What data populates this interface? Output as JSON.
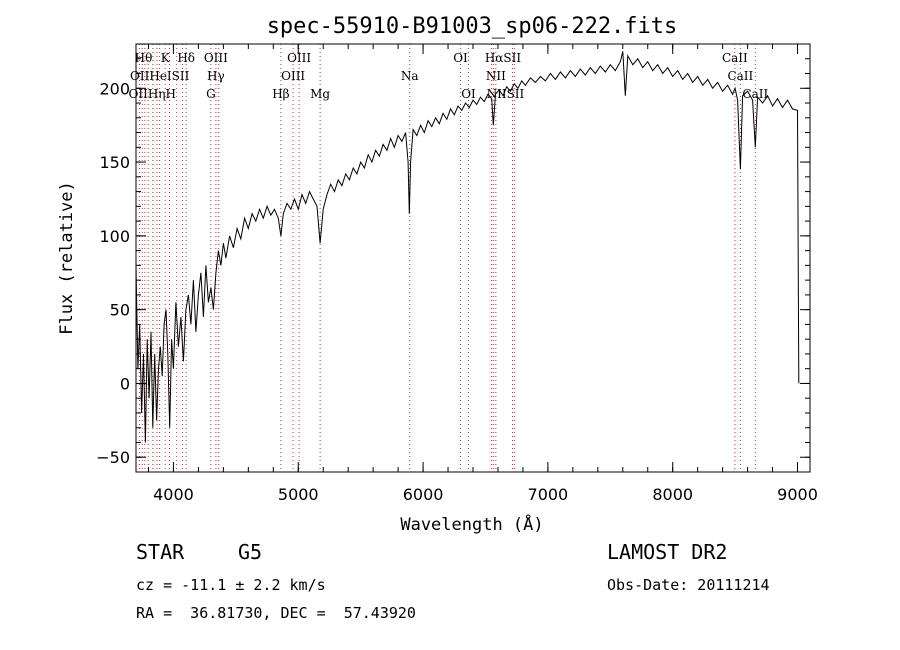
{
  "footer": {
    "obj_class": "STAR",
    "subclass": "G5",
    "survey": "LAMOST DR2",
    "cz": "cz = -11.1 ± 2.2 km/s",
    "obs_date": "Obs-Date: 20111214",
    "radec": "RA =  36.81730, DEC =  57.43920"
  },
  "chart_data": {
    "type": "line",
    "title": "spec-55910-B91003_sp06-222.fits",
    "xlabel": "Wavelength (Å)",
    "ylabel": "Flux (relative)",
    "xlim": [
      3700,
      9100
    ],
    "ylim": [
      -60,
      230
    ],
    "xticks": [
      4000,
      5000,
      6000,
      7000,
      8000,
      9000
    ],
    "yticks": [
      -50,
      0,
      50,
      100,
      150,
      200
    ],
    "line_color": "#000000",
    "marker_color": "#cc3333",
    "series": [
      {
        "points": [
          [
            3700,
            80
          ],
          [
            3715,
            10
          ],
          [
            3730,
            40
          ],
          [
            3745,
            -20
          ],
          [
            3760,
            20
          ],
          [
            3775,
            -40
          ],
          [
            3790,
            30
          ],
          [
            3805,
            -10
          ],
          [
            3820,
            35
          ],
          [
            3835,
            -30
          ],
          [
            3850,
            20
          ],
          [
            3865,
            -25
          ],
          [
            3880,
            10
          ],
          [
            3895,
            25
          ],
          [
            3910,
            5
          ],
          [
            3925,
            40
          ],
          [
            3940,
            50
          ],
          [
            3955,
            20
          ],
          [
            3970,
            -30
          ],
          [
            3985,
            30
          ],
          [
            4000,
            10
          ],
          [
            4020,
            55
          ],
          [
            4040,
            25
          ],
          [
            4060,
            45
          ],
          [
            4080,
            15
          ],
          [
            4100,
            50
          ],
          [
            4120,
            60
          ],
          [
            4140,
            40
          ],
          [
            4160,
            70
          ],
          [
            4180,
            35
          ],
          [
            4200,
            60
          ],
          [
            4220,
            75
          ],
          [
            4240,
            45
          ],
          [
            4260,
            80
          ],
          [
            4280,
            55
          ],
          [
            4300,
            65
          ],
          [
            4320,
            50
          ],
          [
            4340,
            75
          ],
          [
            4360,
            90
          ],
          [
            4380,
            80
          ],
          [
            4400,
            95
          ],
          [
            4420,
            85
          ],
          [
            4450,
            100
          ],
          [
            4480,
            92
          ],
          [
            4510,
            105
          ],
          [
            4540,
            98
          ],
          [
            4570,
            112
          ],
          [
            4600,
            105
          ],
          [
            4630,
            115
          ],
          [
            4660,
            110
          ],
          [
            4690,
            118
          ],
          [
            4720,
            112
          ],
          [
            4750,
            120
          ],
          [
            4780,
            114
          ],
          [
            4810,
            118
          ],
          [
            4840,
            112
          ],
          [
            4861,
            100
          ],
          [
            4880,
            115
          ],
          [
            4910,
            122
          ],
          [
            4940,
            118
          ],
          [
            4970,
            125
          ],
          [
            5000,
            118
          ],
          [
            5030,
            128
          ],
          [
            5060,
            122
          ],
          [
            5090,
            130
          ],
          [
            5120,
            125
          ],
          [
            5150,
            120
          ],
          [
            5175,
            95
          ],
          [
            5200,
            118
          ],
          [
            5230,
            128
          ],
          [
            5260,
            135
          ],
          [
            5290,
            130
          ],
          [
            5320,
            138
          ],
          [
            5350,
            134
          ],
          [
            5380,
            142
          ],
          [
            5410,
            138
          ],
          [
            5440,
            146
          ],
          [
            5470,
            142
          ],
          [
            5500,
            150
          ],
          [
            5530,
            146
          ],
          [
            5560,
            155
          ],
          [
            5590,
            150
          ],
          [
            5620,
            158
          ],
          [
            5650,
            154
          ],
          [
            5680,
            162
          ],
          [
            5710,
            158
          ],
          [
            5740,
            166
          ],
          [
            5770,
            160
          ],
          [
            5800,
            168
          ],
          [
            5830,
            164
          ],
          [
            5860,
            170
          ],
          [
            5880,
            150
          ],
          [
            5890,
            115
          ],
          [
            5900,
            150
          ],
          [
            5920,
            172
          ],
          [
            5950,
            168
          ],
          [
            5980,
            175
          ],
          [
            6010,
            170
          ],
          [
            6040,
            178
          ],
          [
            6070,
            174
          ],
          [
            6100,
            180
          ],
          [
            6130,
            176
          ],
          [
            6160,
            183
          ],
          [
            6190,
            179
          ],
          [
            6220,
            186
          ],
          [
            6250,
            182
          ],
          [
            6280,
            188
          ],
          [
            6310,
            185
          ],
          [
            6340,
            190
          ],
          [
            6370,
            187
          ],
          [
            6400,
            192
          ],
          [
            6430,
            189
          ],
          [
            6460,
            194
          ],
          [
            6490,
            191
          ],
          [
            6520,
            196
          ],
          [
            6550,
            193
          ],
          [
            6563,
            175
          ],
          [
            6580,
            196
          ],
          [
            6610,
            199
          ],
          [
            6640,
            195
          ],
          [
            6670,
            201
          ],
          [
            6700,
            198
          ],
          [
            6730,
            203
          ],
          [
            6760,
            200
          ],
          [
            6790,
            205
          ],
          [
            6820,
            202
          ],
          [
            6860,
            207
          ],
          [
            6900,
            204
          ],
          [
            6940,
            208
          ],
          [
            6980,
            205
          ],
          [
            7020,
            210
          ],
          [
            7060,
            206
          ],
          [
            7100,
            211
          ],
          [
            7140,
            207
          ],
          [
            7180,
            212
          ],
          [
            7220,
            208
          ],
          [
            7260,
            213
          ],
          [
            7300,
            209
          ],
          [
            7340,
            214
          ],
          [
            7380,
            210
          ],
          [
            7420,
            215
          ],
          [
            7460,
            211
          ],
          [
            7500,
            216
          ],
          [
            7540,
            212
          ],
          [
            7580,
            218
          ],
          [
            7600,
            225
          ],
          [
            7620,
            195
          ],
          [
            7640,
            222
          ],
          [
            7680,
            216
          ],
          [
            7720,
            220
          ],
          [
            7760,
            214
          ],
          [
            7800,
            218
          ],
          [
            7840,
            212
          ],
          [
            7880,
            216
          ],
          [
            7920,
            210
          ],
          [
            7960,
            214
          ],
          [
            8000,
            208
          ],
          [
            8040,
            212
          ],
          [
            8080,
            206
          ],
          [
            8120,
            210
          ],
          [
            8160,
            204
          ],
          [
            8200,
            208
          ],
          [
            8240,
            202
          ],
          [
            8280,
            206
          ],
          [
            8320,
            200
          ],
          [
            8360,
            204
          ],
          [
            8400,
            198
          ],
          [
            8440,
            202
          ],
          [
            8480,
            196
          ],
          [
            8500,
            200
          ],
          [
            8520,
            192
          ],
          [
            8542,
            145
          ],
          [
            8560,
            195
          ],
          [
            8600,
            198
          ],
          [
            8640,
            192
          ],
          [
            8662,
            160
          ],
          [
            8680,
            194
          ],
          [
            8720,
            190
          ],
          [
            8760,
            195
          ],
          [
            8800,
            188
          ],
          [
            8840,
            193
          ],
          [
            8880,
            187
          ],
          [
            8920,
            192
          ],
          [
            8960,
            186
          ],
          [
            9000,
            185
          ],
          [
            9010,
            0
          ]
        ]
      }
    ],
    "lines": [
      {
        "wl": 3727,
        "labels": [
          "OII",
          "OII"
        ]
      },
      {
        "wl": 3750,
        "labels": [
          "",
          ""
        ]
      },
      {
        "wl": 3771,
        "labels": [
          "",
          ""
        ]
      },
      {
        "wl": 3798,
        "labels": [
          "",
          "Hθ"
        ]
      },
      {
        "wl": 3835,
        "labels": [
          "Hθ",
          "Hη"
        ]
      },
      {
        "wl": 3869,
        "labels": [
          "",
          "NeIII"
        ]
      },
      {
        "wl": 3889,
        "labels": [
          "HeI",
          ""
        ]
      },
      {
        "wl": 3934,
        "labels": [
          "K",
          "H"
        ]
      },
      {
        "wl": 3968,
        "labels": [
          "",
          ""
        ]
      },
      {
        "wl": 4026,
        "labels": [
          "SII",
          ""
        ]
      },
      {
        "wl": 4072,
        "labels": [
          "",
          ""
        ]
      },
      {
        "wl": 4102,
        "labels": [
          "Hδ",
          ""
        ]
      },
      {
        "wl": 4300,
        "labels": [
          "Hγ",
          "G"
        ]
      },
      {
        "wl": 4340,
        "labels": [
          "OIII",
          ""
        ]
      },
      {
        "wl": 4363,
        "labels": [
          "",
          ""
        ]
      },
      {
        "wl": 4861,
        "labels": [
          "Hβ",
          ""
        ]
      },
      {
        "wl": 4959,
        "labels": [
          "OIII",
          ""
        ]
      },
      {
        "wl": 5007,
        "labels": [
          "OIII",
          ""
        ]
      },
      {
        "wl": 5175,
        "labels": [
          "Mg",
          ""
        ]
      },
      {
        "wl": 5893,
        "labels": [
          "Na",
          ""
        ]
      },
      {
        "wl": 6300,
        "labels": [
          "OI",
          ""
        ]
      },
      {
        "wl": 6364,
        "labels": [
          "OI",
          ""
        ]
      },
      {
        "wl": 6548,
        "labels": [
          "NII",
          ""
        ]
      },
      {
        "wl": 6563,
        "labels": [
          "Hα",
          ""
        ]
      },
      {
        "wl": 6583,
        "labels": [
          "NII",
          ""
        ]
      },
      {
        "wl": 6716,
        "labels": [
          "SII",
          ""
        ]
      },
      {
        "wl": 6731,
        "labels": [
          "SII",
          ""
        ]
      },
      {
        "wl": 8498,
        "labels": [
          "CaII",
          ""
        ]
      },
      {
        "wl": 8542,
        "labels": [
          "CaII",
          ""
        ]
      },
      {
        "wl": 8662,
        "labels": [
          "CaII",
          ""
        ]
      }
    ],
    "label_rows": [
      {
        "text": "Hθ",
        "wl": 3760,
        "row": 0
      },
      {
        "text": "K",
        "wl": 3934,
        "row": 0
      },
      {
        "text": "Hδ",
        "wl": 4102,
        "row": 0
      },
      {
        "text": "OIII",
        "wl": 4340,
        "row": 0
      },
      {
        "text": "OIII",
        "wl": 5007,
        "row": 0
      },
      {
        "text": "OI",
        "wl": 6300,
        "row": 0
      },
      {
        "text": "HαSII",
        "wl": 6640,
        "row": 0
      },
      {
        "text": "CaII",
        "wl": 8498,
        "row": 0
      },
      {
        "text": "OIIHeISII",
        "wl": 3890,
        "row": 1
      },
      {
        "text": "Hγ",
        "wl": 4340,
        "row": 1
      },
      {
        "text": "OIII",
        "wl": 4959,
        "row": 1
      },
      {
        "text": "Na",
        "wl": 5893,
        "row": 1
      },
      {
        "text": "NII",
        "wl": 6583,
        "row": 1
      },
      {
        "text": "CaII",
        "wl": 8542,
        "row": 1
      },
      {
        "text": "OIIHηH",
        "wl": 3830,
        "row": 2
      },
      {
        "text": "G",
        "wl": 4300,
        "row": 2
      },
      {
        "text": "Hβ",
        "wl": 4861,
        "row": 2
      },
      {
        "text": "Mg",
        "wl": 5175,
        "row": 2
      },
      {
        "text": "OI",
        "wl": 6364,
        "row": 2
      },
      {
        "text": "NIISII",
        "wl": 6660,
        "row": 2
      },
      {
        "text": "CaII",
        "wl": 8662,
        "row": 2
      }
    ]
  }
}
